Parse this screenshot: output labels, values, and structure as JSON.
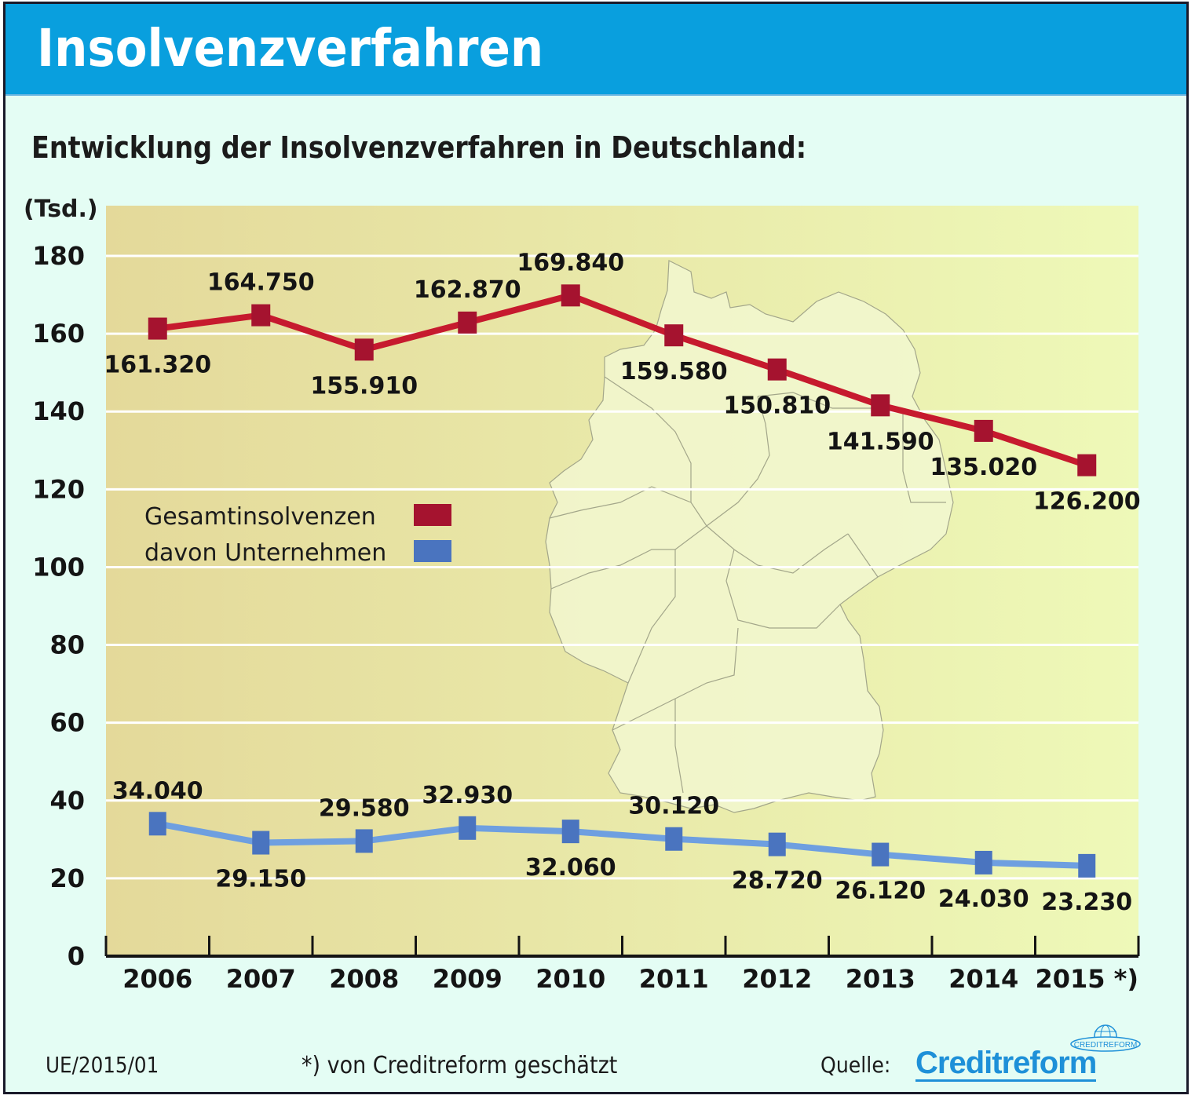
{
  "header": {
    "title": "Insolvenzverfahren"
  },
  "subtitle": "Entwicklung der Insolvenzverfahren in Deutschland:",
  "footer": {
    "code": "UE/2015/01",
    "note": "*) von Creditreform geschätzt",
    "source_label": "Quelle:",
    "brand": "Creditreform",
    "brand_emblem_text": "CREDITREFORM"
  },
  "colors": {
    "header_bg": "#099fde",
    "page_bg": "#e4fdf4",
    "plot_bg_left": "#e4d99a",
    "plot_bg_right": "#eef9b8",
    "series_total": "#a5132f",
    "series_total_line": "#c61a2e",
    "series_companies": "#4a74bf",
    "series_companies_line": "#6e9fe0",
    "map_fill": "#f3f8d2",
    "brand": "#1e90d8"
  },
  "chart_data": {
    "type": "line",
    "title": "Entwicklung der Insolvenzverfahren in Deutschland:",
    "xlabel": "",
    "ylabel": "(Tsd.)",
    "ylim": [
      0,
      180
    ],
    "yticks": [
      0,
      20,
      40,
      60,
      80,
      100,
      120,
      140,
      160,
      180
    ],
    "ytick_labels": [
      "0",
      "20",
      "40",
      "60",
      "80",
      "100",
      "120",
      "140",
      "160",
      "180"
    ],
    "grid": true,
    "legend_position": "left",
    "categories": [
      "2006",
      "2007",
      "2008",
      "2009",
      "2010",
      "2011",
      "2012",
      "2013",
      "2014",
      "2015"
    ],
    "category_labels": [
      "2006",
      "2007",
      "2008",
      "2009",
      "2010",
      "2011",
      "2012",
      "2013",
      "2014",
      "2015 *)"
    ],
    "series": [
      {
        "name": "Gesamtinsolvenzen",
        "values": [
          161.32,
          164.75,
          155.91,
          162.87,
          169.84,
          159.58,
          150.81,
          141.59,
          135.02,
          126.2
        ],
        "labels": [
          "161.320",
          "164.750",
          "155.910",
          "162.870",
          "169.840",
          "159.580",
          "150.810",
          "141.590",
          "135.020",
          "126.200"
        ],
        "label_positions": [
          "below",
          "above",
          "below",
          "above",
          "above",
          "below",
          "below",
          "below",
          "below",
          "below"
        ]
      },
      {
        "name": "davon Unternehmen",
        "values": [
          34.04,
          29.15,
          29.58,
          32.93,
          32.06,
          30.12,
          28.72,
          26.12,
          24.03,
          23.23
        ],
        "labels": [
          "34.040",
          "29.150",
          "29.580",
          "32.930",
          "32.060",
          "30.120",
          "28.720",
          "26.120",
          "24.030",
          "23.230"
        ],
        "label_positions": [
          "above",
          "below",
          "above",
          "above",
          "below",
          "above",
          "below",
          "below",
          "below",
          "below"
        ]
      }
    ],
    "annotations": [
      "*) von Creditreform geschätzt"
    ],
    "background_image": "map of Germany with federal state borders"
  }
}
